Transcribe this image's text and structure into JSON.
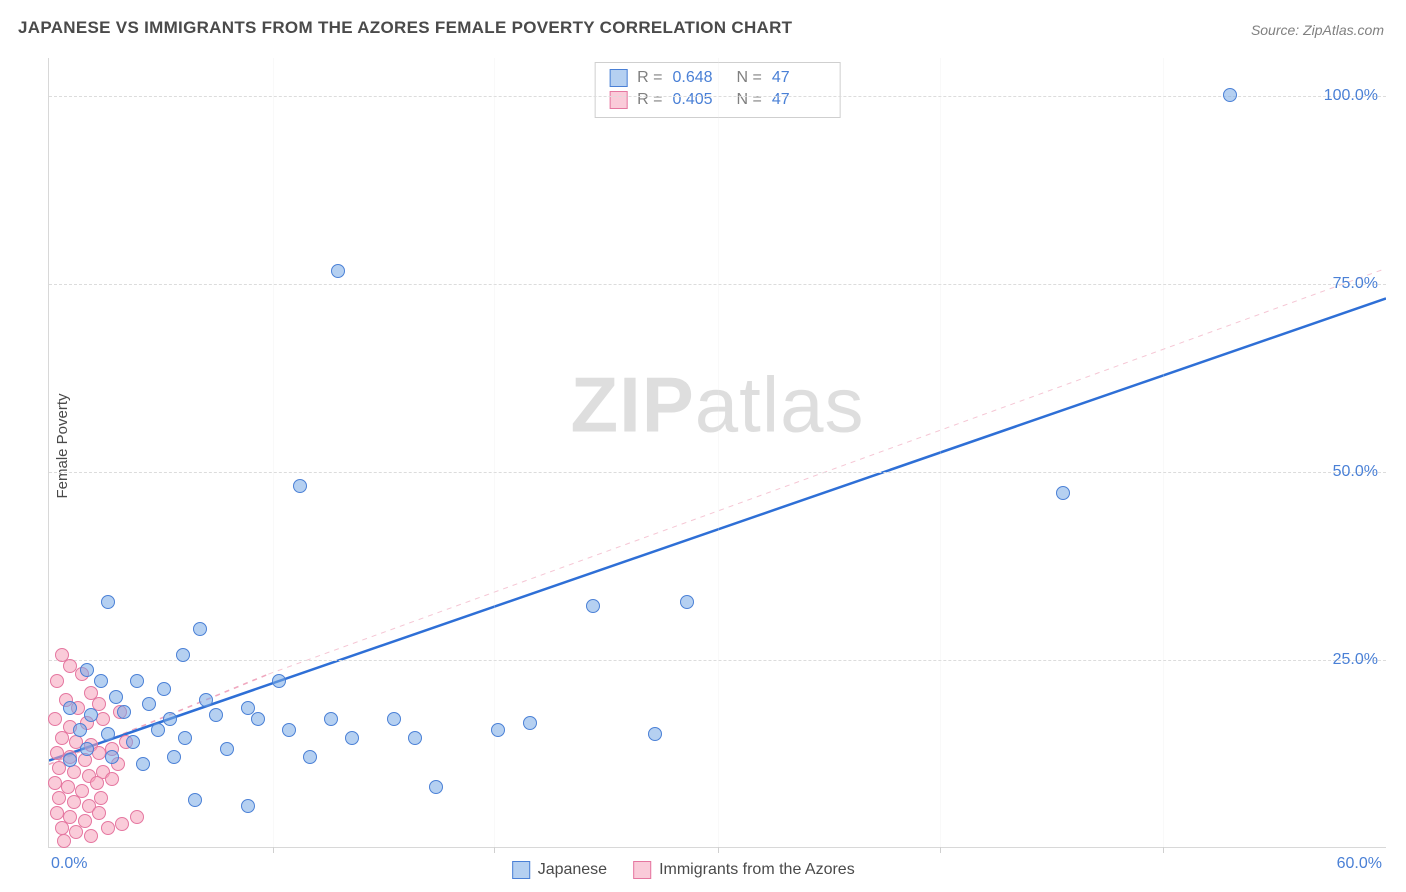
{
  "title": "JAPANESE VS IMMIGRANTS FROM THE AZORES FEMALE POVERTY CORRELATION CHART",
  "source": "Source: ZipAtlas.com",
  "ylabel": "Female Poverty",
  "watermark_bold": "ZIP",
  "watermark_rest": "atlas",
  "chart": {
    "type": "scatter",
    "xlim": [
      0,
      64
    ],
    "ylim": [
      0,
      105
    ],
    "x_tick_label": "0.0%",
    "x_end_label": "60.0%",
    "x_ticks": [
      10.7,
      21.3,
      32.0,
      42.6,
      53.3
    ],
    "y_gridlines": [
      25,
      50,
      75,
      100
    ],
    "y_tick_labels": [
      "25.0%",
      "50.0%",
      "75.0%",
      "100.0%"
    ],
    "marker_radius": 7,
    "background_color": "#ffffff",
    "grid_color": "#dcdcdc",
    "axis_color": "#d8d8d8",
    "tick_label_color": "#4a80d6",
    "label_fontsize": 15,
    "tick_fontsize": 16,
    "title_fontsize": 17,
    "series": {
      "blue": {
        "label": "Japanese",
        "fill": "rgba(120,170,230,0.55)",
        "stroke": "#4a80d6",
        "R": "0.648",
        "N": "47",
        "trend": {
          "x1": 0,
          "y1": 11.5,
          "x2": 64,
          "y2": 73,
          "width": 2.5,
          "dash": "none",
          "color": "#2e6fd6"
        },
        "points": [
          [
            56.5,
            100
          ],
          [
            13.8,
            76.5
          ],
          [
            48.5,
            47
          ],
          [
            12.0,
            48
          ],
          [
            2.8,
            32.5
          ],
          [
            7.2,
            29
          ],
          [
            6.4,
            25.5
          ],
          [
            1.8,
            23.5
          ],
          [
            2.5,
            22
          ],
          [
            4.2,
            22
          ],
          [
            5.5,
            21
          ],
          [
            7.5,
            19.5
          ],
          [
            3.2,
            20
          ],
          [
            11.0,
            22
          ],
          [
            1.0,
            18.5
          ],
          [
            2.0,
            17.5
          ],
          [
            3.6,
            18
          ],
          [
            4.8,
            19
          ],
          [
            5.8,
            17
          ],
          [
            8.0,
            17.5
          ],
          [
            9.5,
            18.5
          ],
          [
            1.5,
            15.5
          ],
          [
            2.8,
            15
          ],
          [
            4.0,
            14
          ],
          [
            5.2,
            15.5
          ],
          [
            6.5,
            14.5
          ],
          [
            8.5,
            13
          ],
          [
            10.0,
            17
          ],
          [
            11.5,
            15.5
          ],
          [
            13.5,
            17
          ],
          [
            14.5,
            14.5
          ],
          [
            16.5,
            17
          ],
          [
            17.5,
            14.5
          ],
          [
            21.5,
            15.5
          ],
          [
            26.0,
            32
          ],
          [
            30.5,
            32.5
          ],
          [
            29.0,
            15
          ],
          [
            23.0,
            16.5
          ],
          [
            18.5,
            8
          ],
          [
            7.0,
            6.2
          ],
          [
            9.5,
            5.5
          ],
          [
            4.5,
            11
          ],
          [
            3.0,
            12
          ],
          [
            1.0,
            11.5
          ],
          [
            1.8,
            13
          ],
          [
            6.0,
            12
          ],
          [
            12.5,
            12
          ]
        ]
      },
      "pink": {
        "label": "Immigrants from the Azores",
        "fill": "rgba(245,160,185,0.55)",
        "stroke": "#e577a0",
        "R": "0.405",
        "N": "47",
        "trend": {
          "x1": 0,
          "y1": 11,
          "x2": 10.5,
          "y2": 23,
          "width": 1.6,
          "dash": "5,5",
          "color": "#f0a8bf"
        },
        "trend_ext": {
          "x1": 10.5,
          "y1": 23,
          "x2": 64,
          "y2": 77,
          "width": 1.0,
          "dash": "5,5",
          "color": "#f5c6d4"
        },
        "points": [
          [
            0.6,
            25.5
          ],
          [
            1.0,
            24
          ],
          [
            1.6,
            23
          ],
          [
            0.4,
            22
          ],
          [
            2.0,
            20.5
          ],
          [
            0.8,
            19.5
          ],
          [
            1.4,
            18.5
          ],
          [
            2.4,
            19
          ],
          [
            0.3,
            17
          ],
          [
            1.0,
            16
          ],
          [
            1.8,
            16.5
          ],
          [
            2.6,
            17
          ],
          [
            3.4,
            18
          ],
          [
            0.6,
            14.5
          ],
          [
            1.3,
            14
          ],
          [
            2.0,
            13.5
          ],
          [
            0.4,
            12.5
          ],
          [
            1.0,
            12
          ],
          [
            1.7,
            11.5
          ],
          [
            2.4,
            12.5
          ],
          [
            3.0,
            13
          ],
          [
            3.7,
            14
          ],
          [
            0.5,
            10.5
          ],
          [
            1.2,
            10
          ],
          [
            1.9,
            9.5
          ],
          [
            2.6,
            10
          ],
          [
            3.3,
            11
          ],
          [
            0.3,
            8.5
          ],
          [
            0.9,
            8
          ],
          [
            1.6,
            7.5
          ],
          [
            2.3,
            8.5
          ],
          [
            3.0,
            9
          ],
          [
            0.5,
            6.5
          ],
          [
            1.2,
            6
          ],
          [
            1.9,
            5.5
          ],
          [
            2.5,
            6.5
          ],
          [
            0.4,
            4.5
          ],
          [
            1.0,
            4
          ],
          [
            1.7,
            3.5
          ],
          [
            2.4,
            4.5
          ],
          [
            0.6,
            2.5
          ],
          [
            1.3,
            2
          ],
          [
            2.0,
            1.5
          ],
          [
            2.8,
            2.5
          ],
          [
            3.5,
            3
          ],
          [
            4.2,
            4
          ],
          [
            0.7,
            0.8
          ]
        ]
      }
    }
  },
  "legend_top": {
    "r_label": "R =",
    "n_label": "N ="
  }
}
